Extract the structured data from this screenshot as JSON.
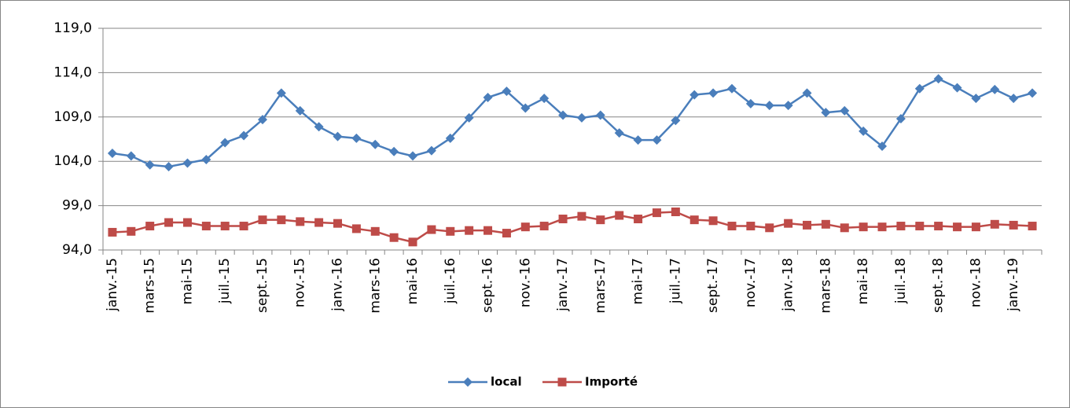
{
  "chart_data": {
    "type": "line",
    "categories": [
      "janv.-15",
      null,
      "mars-15",
      null,
      "mai-15",
      null,
      "juil.-15",
      null,
      "sept.-15",
      null,
      "nov.-15",
      null,
      "janv.-16",
      null,
      "mars-16",
      null,
      "mai-16",
      null,
      "juil.-16",
      null,
      "sept.-16",
      null,
      "nov.-16",
      null,
      "janv.-17",
      null,
      "mars-17",
      null,
      "mai-17",
      null,
      "juil.-17",
      null,
      "sept.-17",
      null,
      "nov.-17",
      null,
      "janv.-18",
      null,
      "mars-18",
      null,
      "mai-18",
      null,
      "juil.-18",
      null,
      "sept.-18",
      null,
      "nov.-18",
      null,
      "janv.-19",
      null
    ],
    "series": [
      {
        "name": "local",
        "color": "#4a7ebb",
        "marker": "diamond",
        "values": [
          104.9,
          104.6,
          103.6,
          103.4,
          103.8,
          104.2,
          106.1,
          106.9,
          108.7,
          111.7,
          109.7,
          107.9,
          106.8,
          106.6,
          105.9,
          105.1,
          104.6,
          105.2,
          106.6,
          108.9,
          111.2,
          111.9,
          110.0,
          111.1,
          109.2,
          108.9,
          109.2,
          107.2,
          106.4,
          106.4,
          108.6,
          111.5,
          111.7,
          112.2,
          110.5,
          110.3,
          110.3,
          111.7,
          109.5,
          109.7,
          107.4,
          105.7,
          108.8,
          112.2,
          113.3,
          112.3,
          111.1,
          112.1,
          111.1,
          111.7
        ]
      },
      {
        "name": "Importé",
        "color": "#be4b48",
        "marker": "square",
        "values": [
          96.0,
          96.1,
          96.7,
          97.1,
          97.1,
          96.7,
          96.7,
          96.7,
          97.4,
          97.4,
          97.2,
          97.1,
          97.0,
          96.4,
          96.1,
          95.4,
          94.9,
          96.3,
          96.1,
          96.2,
          96.2,
          95.9,
          96.6,
          96.7,
          97.5,
          97.8,
          97.4,
          97.9,
          97.5,
          98.2,
          98.3,
          97.4,
          97.3,
          96.7,
          96.7,
          96.5,
          97.0,
          96.8,
          96.9,
          96.5,
          96.6,
          96.6,
          96.7,
          96.7,
          96.7,
          96.6,
          96.6,
          96.9,
          96.8,
          96.7
        ]
      }
    ],
    "ylim": [
      94,
      119
    ],
    "yticks": [
      {
        "value": 94,
        "label": "94,0"
      },
      {
        "value": 99,
        "label": "99,0"
      },
      {
        "value": 104,
        "label": "104,0"
      },
      {
        "value": 109,
        "label": "109,0"
      },
      {
        "value": 114,
        "label": "114,0"
      },
      {
        "value": 119,
        "label": "119,0"
      }
    ],
    "grid": true,
    "legend": "bottom"
  }
}
